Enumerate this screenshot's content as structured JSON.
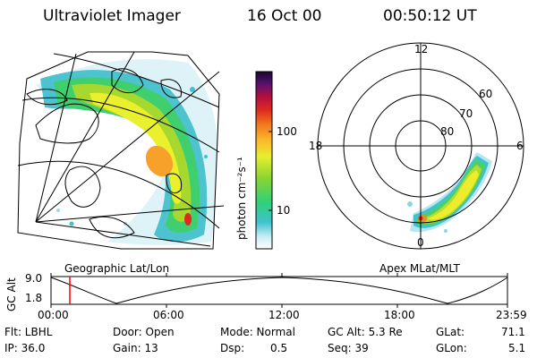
{
  "header": {
    "title": "Ultraviolet Imager",
    "date": "16 Oct 00",
    "time": "00:50:12 UT"
  },
  "left_map": {
    "caption": "Geographic Lat/Lon"
  },
  "colorbar": {
    "unit": "photon cm⁻²s⁻¹",
    "ticks": [
      "100",
      "10"
    ],
    "scale": "log"
  },
  "polar_plot": {
    "caption": "Apex MLat/MLT",
    "mlt_labels": [
      "12",
      "18",
      "6",
      "0"
    ],
    "lat_labels": [
      "60",
      "70",
      "80"
    ]
  },
  "altitude_strip": {
    "ylabel": "GC Alt",
    "yticks": [
      "9.0",
      "1.8"
    ],
    "time_ticks": [
      "00:00",
      "06:00",
      "12:00",
      "18:00",
      "23:59"
    ],
    "marker_color": "#ff0000"
  },
  "footer": {
    "flt": "Flt: LBHL",
    "ip": "IP: 36.0",
    "door": "Door: Open",
    "gain": "Gain: 13",
    "mode": "Mode: Normal",
    "dsp_label": "Dsp:",
    "dsp_value": "0.5",
    "gcalt": "GC Alt: 5.3 Re",
    "seq": "Seq: 39",
    "glat_label": "GLat:",
    "glat_value": "71.1",
    "glon_label": "GLon:",
    "glon_value": "5.1"
  }
}
